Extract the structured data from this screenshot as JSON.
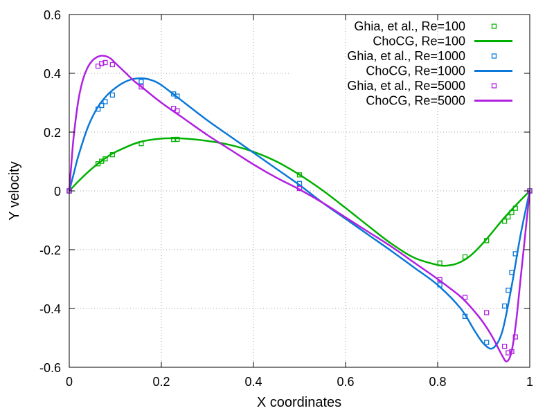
{
  "chart_data": {
    "type": "line",
    "title": "",
    "xlabel": "X coordinates",
    "ylabel": "Y velocity",
    "xlim": [
      0,
      1
    ],
    "ylim": [
      -0.6,
      0.6
    ],
    "x_ticks": [
      0,
      0.2,
      0.4,
      0.6,
      0.8,
      1
    ],
    "x_tick_labels": [
      "0",
      "0.2",
      "0.4",
      "0.6",
      "0.8",
      "1"
    ],
    "y_ticks": [
      -0.6,
      -0.4,
      -0.2,
      0,
      0.2,
      0.4,
      0.6
    ],
    "y_tick_labels": [
      "-0.6",
      "-0.4",
      "-0.2",
      "0",
      "0.2",
      "0.4",
      "0.6"
    ],
    "grid": true,
    "legend_position": "top-right",
    "series": [
      {
        "name": "Ghia, et al., Re=100",
        "style": "points",
        "color": "#00b000",
        "x": [
          0,
          0.0625,
          0.0703,
          0.0781,
          0.0938,
          0.1563,
          0.2266,
          0.2344,
          0.5,
          0.8047,
          0.8594,
          0.9063,
          0.9453,
          0.9531,
          0.9609,
          0.9688,
          1
        ],
        "y": [
          0,
          0.0923,
          0.1009,
          0.1089,
          0.1232,
          0.1608,
          0.1751,
          0.1753,
          0.0545,
          -0.2453,
          -0.2245,
          -0.1691,
          -0.1031,
          -0.0886,
          -0.0739,
          -0.0591,
          0
        ]
      },
      {
        "name": "ChoCG, Re=100",
        "style": "line",
        "color": "#00b000",
        "x": [
          0,
          0.02,
          0.04,
          0.06,
          0.08,
          0.1,
          0.15,
          0.2,
          0.25,
          0.3,
          0.35,
          0.4,
          0.45,
          0.5,
          0.55,
          0.6,
          0.65,
          0.7,
          0.75,
          0.8,
          0.82,
          0.84,
          0.86,
          0.88,
          0.9,
          0.92,
          0.94,
          0.96,
          0.98,
          1
        ],
        "y": [
          0,
          0.033,
          0.063,
          0.09,
          0.113,
          0.132,
          0.165,
          0.178,
          0.178,
          0.17,
          0.156,
          0.133,
          0.1,
          0.055,
          0.002,
          -0.058,
          -0.12,
          -0.18,
          -0.228,
          -0.252,
          -0.254,
          -0.248,
          -0.233,
          -0.208,
          -0.175,
          -0.138,
          -0.1,
          -0.065,
          -0.032,
          0
        ]
      },
      {
        "name": "Ghia, et al., Re=1000",
        "style": "points",
        "color": "#0a78d8",
        "x": [
          0,
          0.0625,
          0.0703,
          0.0781,
          0.0938,
          0.1563,
          0.2266,
          0.2344,
          0.5,
          0.8047,
          0.8594,
          0.9063,
          0.9453,
          0.9531,
          0.9609,
          0.9688,
          1
        ],
        "y": [
          0,
          0.2781,
          0.2906,
          0.3035,
          0.3262,
          0.3717,
          0.3298,
          0.3223,
          0.0253,
          -0.3197,
          -0.4267,
          -0.5155,
          -0.3915,
          -0.3378,
          -0.2771,
          -0.2139,
          0
        ]
      },
      {
        "name": "ChoCG, Re=1000",
        "style": "line",
        "color": "#0a78d8",
        "x": [
          0,
          0.01,
          0.02,
          0.04,
          0.06,
          0.08,
          0.1,
          0.12,
          0.14,
          0.16,
          0.18,
          0.2,
          0.25,
          0.3,
          0.35,
          0.4,
          0.45,
          0.5,
          0.55,
          0.6,
          0.65,
          0.7,
          0.75,
          0.8,
          0.85,
          0.88,
          0.9,
          0.92,
          0.94,
          0.96,
          0.98,
          1
        ],
        "y": [
          0,
          0.06,
          0.12,
          0.215,
          0.28,
          0.322,
          0.35,
          0.37,
          0.381,
          0.383,
          0.376,
          0.36,
          0.3,
          0.24,
          0.185,
          0.13,
          0.075,
          0.02,
          -0.04,
          -0.095,
          -0.15,
          -0.205,
          -0.262,
          -0.32,
          -0.4,
          -0.475,
          -0.52,
          -0.535,
          -0.48,
          -0.33,
          -0.15,
          0
        ]
      },
      {
        "name": "Ghia, et al., Re=5000",
        "style": "points",
        "color": "#b020e0",
        "x": [
          0,
          0.0625,
          0.0703,
          0.0781,
          0.0938,
          0.1563,
          0.2266,
          0.2344,
          0.5,
          0.8047,
          0.8594,
          0.9063,
          0.9453,
          0.9531,
          0.9609,
          0.9688,
          1
        ],
        "y": [
          0,
          0.4245,
          0.4333,
          0.4365,
          0.4295,
          0.3537,
          0.2807,
          0.2728,
          0.0082,
          -0.3019,
          -0.3623,
          -0.4141,
          -0.5287,
          -0.5507,
          -0.5467,
          -0.4968,
          0
        ]
      },
      {
        "name": "ChoCG, Re=5000",
        "style": "line",
        "color": "#b020e0",
        "x": [
          0,
          0.005,
          0.01,
          0.02,
          0.03,
          0.04,
          0.05,
          0.06,
          0.07,
          0.08,
          0.09,
          0.1,
          0.12,
          0.14,
          0.16,
          0.2,
          0.25,
          0.3,
          0.35,
          0.4,
          0.45,
          0.5,
          0.55,
          0.6,
          0.65,
          0.7,
          0.75,
          0.8,
          0.85,
          0.88,
          0.9,
          0.92,
          0.94,
          0.95,
          0.96,
          0.97,
          0.98,
          0.99,
          1
        ],
        "y": [
          0,
          0.1,
          0.19,
          0.31,
          0.38,
          0.42,
          0.443,
          0.455,
          0.46,
          0.458,
          0.45,
          0.435,
          0.405,
          0.375,
          0.35,
          0.3,
          0.245,
          0.19,
          0.14,
          0.09,
          0.045,
          0.005,
          -0.04,
          -0.09,
          -0.14,
          -0.19,
          -0.245,
          -0.3,
          -0.36,
          -0.41,
          -0.45,
          -0.5,
          -0.56,
          -0.58,
          -0.55,
          -0.45,
          -0.3,
          -0.15,
          0
        ]
      }
    ]
  }
}
